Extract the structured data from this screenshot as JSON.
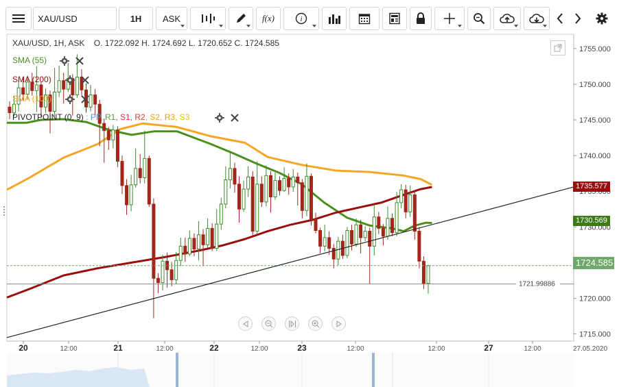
{
  "toolbar": {
    "symbol": "XAU/USD",
    "timeframe": "1H",
    "price_type": "ASK",
    "function_label": "f(x)",
    "info_label": "i"
  },
  "legend": {
    "title": "XAU/USD, 1H, ASK",
    "ohlc": "O. 1722.092 H. 1724.692 L. 1720.652 C. 1724.585",
    "sma55": "SMA (55)",
    "sma200": "SMA (200)",
    "sma100": "SMA (100)",
    "pivot_label": "PIVOTPOINT (0, 9)",
    "pivot_sep": " : ",
    "pivot_items": [
      {
        "label": "PP",
        "color": "#4a90e2"
      },
      {
        "label": "R1",
        "color": "#5a9e2f"
      },
      {
        "label": "S1",
        "color": "#d23b3b"
      },
      {
        "label": "R2",
        "color": "#d23b3b"
      },
      {
        "label": "S2",
        "color": "#f0a020"
      },
      {
        "label": "R3",
        "color": "#f0a020"
      },
      {
        "label": "S3",
        "color": "#e6c200"
      }
    ]
  },
  "colors": {
    "sma55": "#4a8f1c",
    "sma100": "#f5a623",
    "sma200": "#9b0d0d",
    "bull": "#3c8a2b",
    "bear": "#a3261b",
    "trendline": "#222222",
    "last_price_tag": "#6fa86a",
    "sma200_tag": "#9b0d0d",
    "sma55_tag": "#3e7a17"
  },
  "tags": {
    "sma200": "1735.577",
    "sma55": "1730.569",
    "last_price": "1724.585",
    "support": "1721.99886"
  },
  "chart_data": {
    "type": "candlestick",
    "instrument": "XAU/USD",
    "timeframe": "1H",
    "ylim": [
      1714,
      1757
    ],
    "y_ticks": [
      "1755.000",
      "1750.000",
      "1745.000",
      "1740.000",
      "1735.000",
      "1730.000",
      "1725.000",
      "1720.000",
      "1715.000"
    ],
    "x_ticks": [
      "20",
      "12:00",
      "21",
      "12:00",
      "22",
      "12:00",
      "23",
      "12:00",
      "12:00",
      "27",
      "12:00",
      "27.05.2020"
    ],
    "last_close": 1724.585,
    "horizontal_line": 1721.99886,
    "trendline": [
      {
        "x": 0,
        "y": 1714.5
      },
      {
        "x": 1,
        "y": 1735.6
      }
    ],
    "candles": [
      [
        1746.8,
        1746.0,
        1747.6,
        1745.1
      ],
      [
        1746.0,
        1747.2,
        1748.4,
        1745.5
      ],
      [
        1747.2,
        1749.5,
        1750.6,
        1746.2
      ],
      [
        1749.5,
        1748.6,
        1750.9,
        1747.7
      ],
      [
        1748.6,
        1750.3,
        1751.2,
        1747.9
      ],
      [
        1750.3,
        1749.1,
        1751.6,
        1748.4
      ],
      [
        1749.1,
        1749.9,
        1752.5,
        1746.1
      ],
      [
        1749.9,
        1746.8,
        1750.3,
        1745.4
      ],
      [
        1746.8,
        1748.5,
        1749.4,
        1746.0
      ],
      [
        1748.5,
        1746.2,
        1749.1,
        1743.1
      ],
      [
        1746.2,
        1748.9,
        1752.3,
        1745.5
      ],
      [
        1748.9,
        1750.5,
        1752.6,
        1748.2
      ],
      [
        1750.5,
        1749.3,
        1751.6,
        1747.3
      ],
      [
        1749.3,
        1750.8,
        1753.0,
        1748.9
      ],
      [
        1750.8,
        1748.5,
        1751.4,
        1745.6
      ],
      [
        1748.5,
        1751.0,
        1754.2,
        1748.1
      ],
      [
        1751.0,
        1749.2,
        1752.1,
        1748.4
      ],
      [
        1749.2,
        1746.8,
        1750.1,
        1746.0
      ],
      [
        1746.8,
        1748.5,
        1749.9,
        1746.2
      ],
      [
        1748.5,
        1747.2,
        1749.3,
        1745.7
      ],
      [
        1747.2,
        1744.5,
        1747.8,
        1741.3
      ],
      [
        1744.5,
        1743.5,
        1745.2,
        1739.0
      ],
      [
        1743.5,
        1742.2,
        1744.0,
        1740.8
      ],
      [
        1742.2,
        1743.6,
        1744.3,
        1741.0
      ],
      [
        1743.6,
        1739.2,
        1744.1,
        1738.4
      ],
      [
        1739.2,
        1735.8,
        1740.0,
        1734.6
      ],
      [
        1735.8,
        1733.1,
        1736.7,
        1731.7
      ],
      [
        1733.1,
        1735.9,
        1737.3,
        1732.2
      ],
      [
        1735.9,
        1738.2,
        1741.0,
        1735.5
      ],
      [
        1738.2,
        1736.9,
        1740.2,
        1736.1
      ],
      [
        1736.9,
        1739.6,
        1743.5,
        1736.1
      ],
      [
        1739.6,
        1733.2,
        1740.0,
        1732.8
      ],
      [
        1733.2,
        1722.8,
        1734.0,
        1717.2
      ],
      [
        1722.8,
        1722.2,
        1723.5,
        1720.7
      ],
      [
        1722.2,
        1725.2,
        1726.1,
        1721.1
      ],
      [
        1725.2,
        1724.0,
        1726.4,
        1721.5
      ],
      [
        1724.0,
        1722.6,
        1725.1,
        1721.7
      ],
      [
        1722.6,
        1725.3,
        1726.5,
        1722.0
      ],
      [
        1725.3,
        1727.3,
        1728.5,
        1724.5
      ],
      [
        1727.3,
        1726.2,
        1728.5,
        1725.1
      ],
      [
        1726.2,
        1728.4,
        1729.5,
        1725.9
      ],
      [
        1728.4,
        1726.9,
        1729.1,
        1725.9
      ],
      [
        1726.9,
        1728.9,
        1730.8,
        1725.3
      ],
      [
        1728.9,
        1727.5,
        1729.7,
        1724.5
      ],
      [
        1727.5,
        1729.8,
        1731.2,
        1727.1
      ],
      [
        1729.8,
        1727.0,
        1730.5,
        1726.6
      ],
      [
        1727.0,
        1730.4,
        1732.5,
        1726.6
      ],
      [
        1730.4,
        1733.2,
        1734.1,
        1729.6
      ],
      [
        1733.2,
        1736.6,
        1738.5,
        1732.6
      ],
      [
        1736.6,
        1738.2,
        1740.4,
        1735.4
      ],
      [
        1738.2,
        1736.0,
        1739.0,
        1734.8
      ],
      [
        1736.0,
        1732.5,
        1737.1,
        1730.6
      ],
      [
        1732.5,
        1735.3,
        1736.5,
        1732.1
      ],
      [
        1735.3,
        1737.0,
        1738.5,
        1734.2
      ],
      [
        1737.0,
        1729.4,
        1737.8,
        1728.5
      ],
      [
        1729.4,
        1736.0,
        1739.2,
        1729.0
      ],
      [
        1736.0,
        1733.5,
        1737.1,
        1732.8
      ],
      [
        1733.5,
        1737.2,
        1738.6,
        1732.9
      ],
      [
        1737.2,
        1734.2,
        1737.8,
        1732.0
      ],
      [
        1734.2,
        1736.5,
        1737.6,
        1733.8
      ],
      [
        1736.5,
        1735.1,
        1737.1,
        1734.4
      ],
      [
        1735.1,
        1736.8,
        1738.4,
        1734.9
      ],
      [
        1736.8,
        1735.6,
        1737.5,
        1734.5
      ],
      [
        1735.6,
        1737.0,
        1738.1,
        1734.9
      ],
      [
        1737.0,
        1736.2,
        1737.6,
        1733.0
      ],
      [
        1736.2,
        1732.3,
        1736.7,
        1731.2
      ],
      [
        1732.3,
        1737.1,
        1738.9,
        1731.5
      ],
      [
        1737.1,
        1731.1,
        1737.5,
        1730.2
      ],
      [
        1731.1,
        1729.5,
        1732.0,
        1729.1
      ],
      [
        1729.5,
        1727.3,
        1729.9,
        1726.3
      ],
      [
        1727.3,
        1728.5,
        1730.3,
        1726.6
      ],
      [
        1728.5,
        1727.0,
        1729.4,
        1726.1
      ],
      [
        1727.0,
        1725.5,
        1727.6,
        1724.2
      ],
      [
        1725.5,
        1728.0,
        1728.6,
        1724.6
      ],
      [
        1728.0,
        1726.0,
        1728.9,
        1725.5
      ],
      [
        1726.0,
        1729.5,
        1730.0,
        1725.6
      ],
      [
        1729.5,
        1727.6,
        1730.3,
        1726.7
      ],
      [
        1727.6,
        1730.3,
        1731.2,
        1727.2
      ],
      [
        1730.3,
        1728.5,
        1731.0,
        1726.3
      ],
      [
        1728.5,
        1729.4,
        1730.1,
        1728.0
      ],
      [
        1729.4,
        1727.3,
        1729.9,
        1722.0
      ],
      [
        1727.3,
        1731.4,
        1733.2,
        1726.0
      ],
      [
        1731.4,
        1729.8,
        1732.1,
        1729.0
      ],
      [
        1729.8,
        1728.7,
        1730.4,
        1727.4
      ],
      [
        1728.7,
        1731.2,
        1732.9,
        1728.2
      ],
      [
        1731.2,
        1729.2,
        1731.9,
        1728.7
      ],
      [
        1729.2,
        1733.4,
        1734.9,
        1728.7
      ],
      [
        1733.4,
        1735.2,
        1736.0,
        1732.6
      ],
      [
        1735.2,
        1732.1,
        1735.9,
        1731.2
      ],
      [
        1732.1,
        1734.5,
        1735.8,
        1731.4
      ],
      [
        1734.5,
        1729.4,
        1735.1,
        1728.2
      ],
      [
        1729.4,
        1725.2,
        1730.0,
        1724.2
      ],
      [
        1725.2,
        1722.1,
        1725.9,
        1721.3
      ],
      [
        1722.1,
        1724.585,
        1724.692,
        1720.652
      ]
    ],
    "series": [
      {
        "name": "SMA (55)",
        "values": [
          [
            0,
            1744.6
          ],
          [
            0.035,
            1744.6
          ],
          [
            0.06,
            1745.0
          ],
          [
            0.1,
            1745.1
          ],
          [
            0.14,
            1744.7
          ],
          [
            0.18,
            1743.6
          ],
          [
            0.22,
            1742.9
          ],
          [
            0.26,
            1743.4
          ],
          [
            0.3,
            1743.4
          ],
          [
            0.32,
            1742.8
          ],
          [
            0.36,
            1741.6
          ],
          [
            0.4,
            1740.3
          ],
          [
            0.44,
            1738.9
          ],
          [
            0.48,
            1737.6
          ],
          [
            0.52,
            1736.0
          ],
          [
            0.56,
            1733.4
          ],
          [
            0.6,
            1731.3
          ],
          [
            0.64,
            1730.2
          ],
          [
            0.68,
            1729.8
          ],
          [
            0.7,
            1729.4
          ],
          [
            0.72,
            1730.2
          ],
          [
            0.74,
            1730.6
          ],
          [
            0.75,
            1730.55
          ]
        ]
      },
      {
        "name": "SMA (200)",
        "values": [
          [
            0,
            1720.1
          ],
          [
            0.04,
            1721.3
          ],
          [
            0.1,
            1723.2
          ],
          [
            0.16,
            1724.2
          ],
          [
            0.22,
            1725.0
          ],
          [
            0.28,
            1725.8
          ],
          [
            0.34,
            1726.7
          ],
          [
            0.38,
            1727.4
          ],
          [
            0.42,
            1728.3
          ],
          [
            0.46,
            1729.4
          ],
          [
            0.5,
            1730.3
          ],
          [
            0.54,
            1731.0
          ],
          [
            0.58,
            1732.0
          ],
          [
            0.62,
            1732.7
          ],
          [
            0.66,
            1733.4
          ],
          [
            0.7,
            1734.5
          ],
          [
            0.73,
            1735.3
          ],
          [
            0.75,
            1735.6
          ]
        ]
      },
      {
        "name": "SMA (100)",
        "values": [
          [
            0,
            1735.2
          ],
          [
            0.04,
            1736.9
          ],
          [
            0.1,
            1739.7
          ],
          [
            0.16,
            1741.6
          ],
          [
            0.2,
            1743.7
          ],
          [
            0.24,
            1744.5
          ],
          [
            0.3,
            1744.0
          ],
          [
            0.36,
            1742.7
          ],
          [
            0.42,
            1741.8
          ],
          [
            0.46,
            1739.8
          ],
          [
            0.52,
            1738.7
          ],
          [
            0.58,
            1737.9
          ],
          [
            0.64,
            1737.7
          ],
          [
            0.7,
            1737.2
          ],
          [
            0.73,
            1736.7
          ],
          [
            0.75,
            1735.9
          ]
        ]
      }
    ]
  }
}
